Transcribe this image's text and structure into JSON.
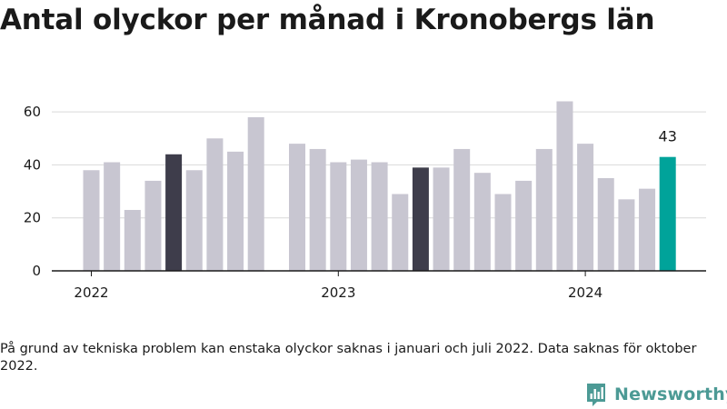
{
  "title": "Antal olyckor per månad i Kronobergs län",
  "footnote": "På grund av tekniska problem kan enstaka olyckor saknas i januari och juli 2022. Data saknas för oktober 2022.",
  "brand": {
    "name": "Newsworthy",
    "icon": "newsworthy-logo-icon"
  },
  "colors": {
    "bar": "#c8c6d1",
    "highlight": "#3e3d4b",
    "latest": "#00a39a",
    "grid": "#d9d9d9",
    "axis": "#1a1a1a"
  },
  "chart_data": {
    "type": "bar",
    "title": "Antal olyckor per månad i Kronobergs län",
    "xlabel": "",
    "ylabel": "",
    "ylim": [
      0,
      70
    ],
    "yticks": [
      0,
      20,
      40,
      60
    ],
    "xticks": [
      {
        "label": "2022",
        "month": "2022-01"
      },
      {
        "label": "2023",
        "month": "2023-01"
      },
      {
        "label": "2024",
        "month": "2024-01"
      }
    ],
    "grid": true,
    "legend": "none",
    "months": [
      "2022-01",
      "2022-02",
      "2022-03",
      "2022-04",
      "2022-05",
      "2022-06",
      "2022-07",
      "2022-08",
      "2022-09",
      "2022-10",
      "2022-11",
      "2022-12",
      "2023-01",
      "2023-02",
      "2023-03",
      "2023-04",
      "2023-05",
      "2023-06",
      "2023-07",
      "2023-08",
      "2023-09",
      "2023-10",
      "2023-11",
      "2023-12",
      "2024-01",
      "2024-02",
      "2024-03",
      "2024-04",
      "2024-05"
    ],
    "values": [
      38,
      41,
      23,
      34,
      44,
      38,
      50,
      45,
      58,
      null,
      48,
      46,
      41,
      42,
      41,
      29,
      39,
      39,
      46,
      37,
      29,
      34,
      46,
      64,
      48,
      35,
      27,
      31,
      43
    ],
    "highlighted_months": [
      "2022-05",
      "2023-05"
    ],
    "latest_month": "2024-05",
    "value_labels": [
      {
        "month": "2024-05",
        "text": "43"
      }
    ]
  }
}
